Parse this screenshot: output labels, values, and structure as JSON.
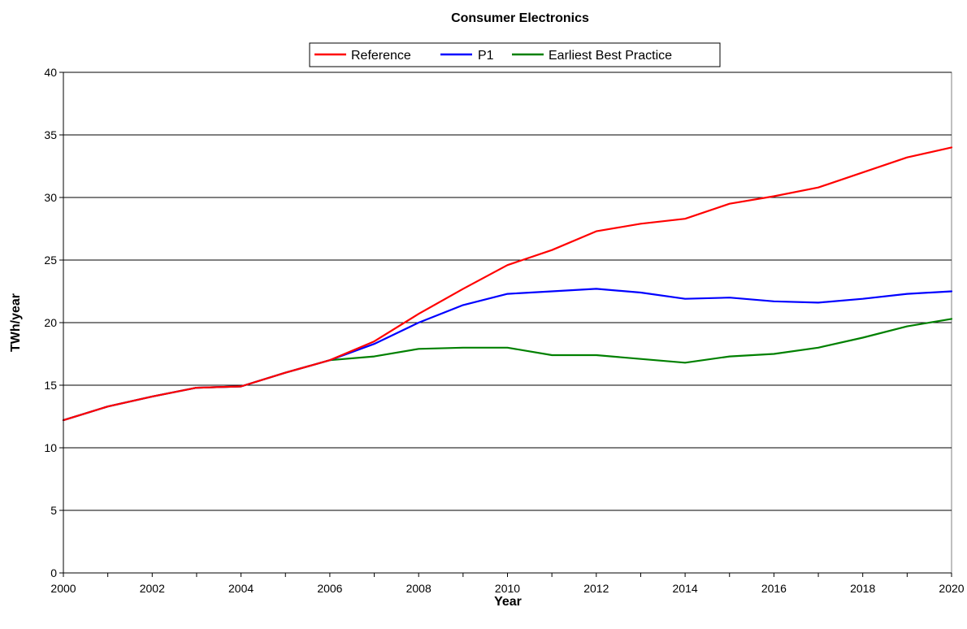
{
  "chart_data": {
    "type": "line",
    "title": "Consumer Electronics",
    "xlabel": "Year",
    "ylabel": "TWh/year",
    "xlim": [
      2000,
      2020
    ],
    "ylim": [
      0,
      40
    ],
    "xticks": [
      "2000",
      "2002",
      "2004",
      "2006",
      "2008",
      "2010",
      "2012",
      "2014",
      "2016",
      "2018",
      "2020"
    ],
    "yticks": [
      "0",
      "5",
      "10",
      "15",
      "20",
      "25",
      "30",
      "35",
      "40"
    ],
    "grid": "horizontal",
    "legend_position": "top",
    "x": [
      2000,
      2001,
      2002,
      2003,
      2004,
      2005,
      2006,
      2007,
      2008,
      2009,
      2010,
      2011,
      2012,
      2013,
      2014,
      2015,
      2016,
      2017,
      2018,
      2019,
      2020
    ],
    "series": [
      {
        "name": "Reference",
        "color": "#ff0000",
        "values": [
          12.2,
          13.3,
          14.1,
          14.8,
          14.9,
          16.0,
          17.0,
          18.5,
          20.7,
          22.7,
          24.6,
          25.8,
          27.3,
          27.9,
          28.3,
          29.5,
          30.1,
          30.8,
          32.0,
          33.2,
          34.0
        ]
      },
      {
        "name": "P1",
        "color": "#0000ff",
        "values": [
          12.2,
          13.3,
          14.1,
          14.8,
          14.9,
          16.0,
          17.0,
          18.3,
          20.0,
          21.4,
          22.3,
          22.5,
          22.7,
          22.4,
          21.9,
          22.0,
          21.7,
          21.6,
          21.9,
          22.3,
          22.5
        ]
      },
      {
        "name": "Earliest Best Practice",
        "color": "#008000",
        "values": [
          12.2,
          13.3,
          14.1,
          14.8,
          14.9,
          16.0,
          17.0,
          17.3,
          17.9,
          18.0,
          18.0,
          17.4,
          17.4,
          17.1,
          16.8,
          17.3,
          17.5,
          18.0,
          18.8,
          19.7,
          20.3
        ]
      }
    ]
  }
}
